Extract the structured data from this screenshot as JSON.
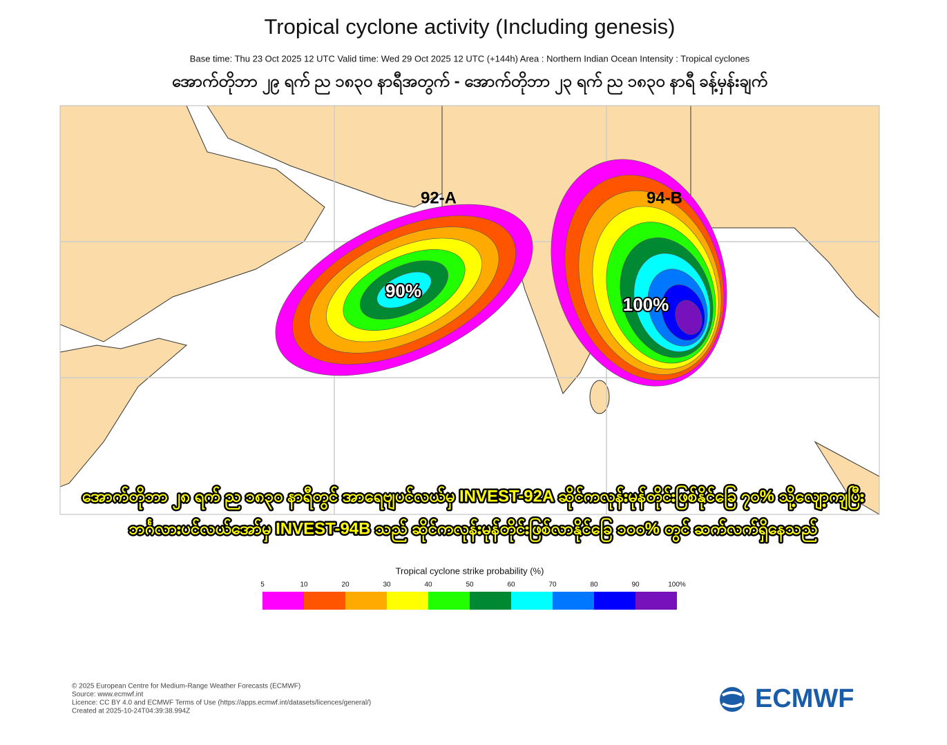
{
  "header": {
    "title": "Tropical cyclone activity (Including genesis)",
    "subtitle": "Base time: Thu 23 Oct 2025 12 UTC Valid time: Wed 29 Oct 2025 12 UTC (+144h) Area : Northern Indian Ocean Intensity : Tropical cyclones",
    "local_caption": "အောက်တိုဘာ ၂၉ ရက် ည ၁၈၃၀ နာရီအတွက် - အောက်တိုဘာ ၂၃ ရက် ည ၁၈၃၀ နာရီ ခန့်မှန်းချက်"
  },
  "map": {
    "systems": [
      {
        "name": "92-A",
        "probability_label": "90%"
      },
      {
        "name": "94-B",
        "probability_label": "100%"
      }
    ],
    "caption_lines": [
      "အောက်တိုဘာ ၂၈ ရက် ည ၁၈၃၀ နာရီတွင် အာရေဗျပင်လယ်မှ INVEST-92A ဆိုင်ကလုန်းမုန်တိုင်းဖြစ်နိုင်ခြေ ၇၀% သို့လျော့ကျပြီး",
      "ဘင်္ဂလားပင်လယ်အော်မှ INVEST-94B သည် ဆိုင်ကလုန်းမုန်တိုင်းဖြစ်လာနိုင်ခြေ ၁၀၀% တွင် ဆက်လက်ရှိနေသည်"
    ]
  },
  "legend": {
    "title": "Tropical cyclone strike probability (%)",
    "ticks": [
      5,
      10,
      20,
      30,
      40,
      50,
      60,
      70,
      80,
      90,
      {
        "value": 100,
        "label": "100%"
      }
    ],
    "colors": [
      "#ff00ff",
      "#ff5500",
      "#ffaa00",
      "#ffff00",
      "#22ff00",
      "#008833",
      "#00ffff",
      "#0077ff",
      "#0000ff",
      "#7711bb"
    ]
  },
  "footer": {
    "lines": [
      "© 2025 European Centre for Medium-Range Weather Forecasts (ECMWF)",
      "Source: www.ecmwf.int",
      "Licence: CC BY 4.0 and ECMWF Terms of Use (https://apps.ecmwf.int/datasets/licences/general/)",
      "Created at 2025-10-24T04:39:38.994Z"
    ],
    "logo": "ECMWF"
  }
}
